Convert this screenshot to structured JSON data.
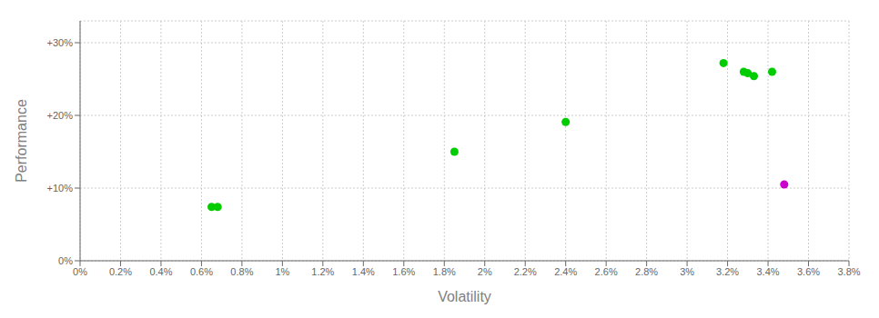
{
  "chart_data": {
    "type": "scatter",
    "xlabel": "Volatility",
    "ylabel": "Performance",
    "xlim": [
      0.0,
      0.038
    ],
    "ylim": [
      0.0,
      0.33
    ],
    "xticks": [
      {
        "value": 0.0,
        "label": "0%"
      },
      {
        "value": 0.002,
        "label": "0.2%"
      },
      {
        "value": 0.004,
        "label": "0.4%"
      },
      {
        "value": 0.006,
        "label": "0.6%"
      },
      {
        "value": 0.008,
        "label": "0.8%"
      },
      {
        "value": 0.01,
        "label": "1%"
      },
      {
        "value": 0.012,
        "label": "1.2%"
      },
      {
        "value": 0.014,
        "label": "1.4%"
      },
      {
        "value": 0.016,
        "label": "1.6%"
      },
      {
        "value": 0.018,
        "label": "1.8%"
      },
      {
        "value": 0.02,
        "label": "2%"
      },
      {
        "value": 0.022,
        "label": "2.2%"
      },
      {
        "value": 0.024,
        "label": "2.4%"
      },
      {
        "value": 0.026,
        "label": "2.6%"
      },
      {
        "value": 0.028,
        "label": "2.8%"
      },
      {
        "value": 0.03,
        "label": "3%"
      },
      {
        "value": 0.032,
        "label": "3.2%"
      },
      {
        "value": 0.034,
        "label": "3.4%"
      },
      {
        "value": 0.036,
        "label": "3.6%"
      },
      {
        "value": 0.038,
        "label": "3.8%"
      }
    ],
    "yticks": [
      {
        "value": 0.0,
        "label": "0%"
      },
      {
        "value": 0.1,
        "label": "+10%"
      },
      {
        "value": 0.2,
        "label": "+20%"
      },
      {
        "value": 0.3,
        "label": "+30%"
      }
    ],
    "grid": true,
    "series": [
      {
        "color": "#00cc00",
        "x": [
          0.0065,
          0.0068,
          0.0185,
          0.024,
          0.0318,
          0.0328,
          0.033,
          0.0333,
          0.0342
        ],
        "values": [
          0.074,
          0.074,
          0.15,
          0.191,
          0.272,
          0.26,
          0.258,
          0.254,
          0.26
        ]
      },
      {
        "color": "#cc00cc",
        "x": [
          0.0348
        ],
        "values": [
          0.105
        ]
      }
    ]
  }
}
